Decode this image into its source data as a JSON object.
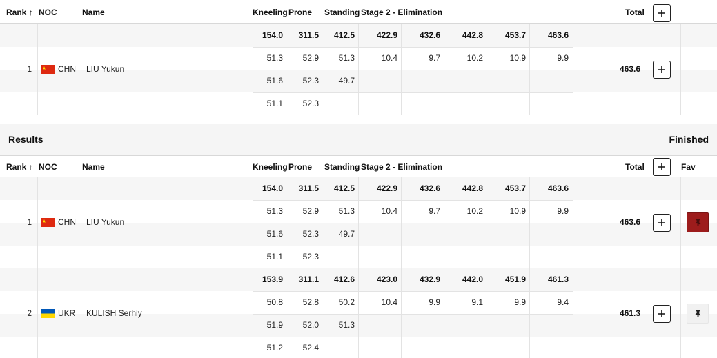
{
  "columns": {
    "rank": "Rank",
    "noc": "NOC",
    "name": "Name",
    "kneeling": "Kneeling",
    "prone": "Prone",
    "standing": "Standing",
    "stage2": "Stage 2 - Elimination",
    "total": "Total",
    "fav": "Fav"
  },
  "icons": {
    "sort": "arrow-up-icon",
    "expand": "plus-icon",
    "pin": "pin-icon"
  },
  "colors": {
    "fav_active": "#9d1c1c",
    "fav_inactive": "#f1f1f1"
  },
  "section": {
    "title": "Results",
    "status": "Finished"
  },
  "top_row": {
    "rank": "1",
    "noc": "CHN",
    "name": "LIU Yukun",
    "total": "463.6",
    "flag": "china-flag",
    "stage_totals": [
      "154.0",
      "311.5",
      "412.5",
      "422.9",
      "432.6",
      "442.8",
      "453.7",
      "463.6"
    ],
    "series1": [
      "51.3",
      "52.9",
      "51.3",
      "10.4",
      "9.7",
      "10.2",
      "10.9",
      "9.9"
    ],
    "series2": [
      "51.6",
      "52.3",
      "49.7",
      "",
      "",
      "",
      "",
      ""
    ],
    "series3": [
      "51.1",
      "52.3",
      "",
      "",
      "",
      "",
      "",
      ""
    ]
  },
  "results": [
    {
      "rank": "1",
      "noc": "CHN",
      "name": "LIU Yukun",
      "total": "463.6",
      "flag": "china-flag",
      "favorited": true,
      "stage_totals": [
        "154.0",
        "311.5",
        "412.5",
        "422.9",
        "432.6",
        "442.8",
        "453.7",
        "463.6"
      ],
      "series1": [
        "51.3",
        "52.9",
        "51.3",
        "10.4",
        "9.7",
        "10.2",
        "10.9",
        "9.9"
      ],
      "series2": [
        "51.6",
        "52.3",
        "49.7",
        "",
        "",
        "",
        "",
        ""
      ],
      "series3": [
        "51.1",
        "52.3",
        "",
        "",
        "",
        "",
        "",
        ""
      ]
    },
    {
      "rank": "2",
      "noc": "UKR",
      "name": "KULISH Serhiy",
      "total": "461.3",
      "flag": "ukraine-flag",
      "favorited": false,
      "stage_totals": [
        "153.9",
        "311.1",
        "412.6",
        "423.0",
        "432.9",
        "442.0",
        "451.9",
        "461.3"
      ],
      "series1": [
        "50.8",
        "52.8",
        "50.2",
        "10.4",
        "9.9",
        "9.1",
        "9.9",
        "9.4"
      ],
      "series2": [
        "51.9",
        "52.0",
        "51.3",
        "",
        "",
        "",
        "",
        ""
      ],
      "series3": [
        "51.2",
        "52.4",
        "",
        "",
        "",
        "",
        "",
        ""
      ]
    }
  ]
}
